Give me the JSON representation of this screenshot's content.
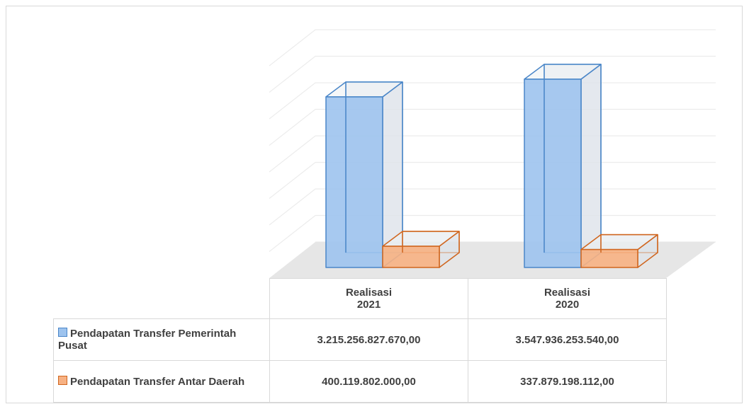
{
  "chart_data": {
    "type": "bar3d",
    "categories": [
      "Realisasi 2021",
      "Realisasi 2020"
    ],
    "series": [
      {
        "name": "Pendapatan Transfer Pemerintah Pusat",
        "color": "#9dc3ee",
        "edge": "#4a86c8",
        "values": [
          3215256827670,
          3547936253540
        ],
        "value_labels": [
          "3.215.256.827.670,00",
          "3.547.936.253.540,00"
        ]
      },
      {
        "name": "Pendapatan Transfer Antar Daerah",
        "color": "#f7b183",
        "edge": "#d0661f",
        "values": [
          400119802000,
          337879198112
        ],
        "value_labels": [
          "400.119.802.000,00",
          "337.879.198.112,00"
        ]
      }
    ],
    "ylim": [
      0,
      4000000000000
    ],
    "yticks": [
      0,
      500000000000,
      1000000000000,
      1500000000000,
      2000000000000,
      2500000000000,
      3000000000000,
      3500000000000,
      4000000000000
    ],
    "grid": true
  }
}
